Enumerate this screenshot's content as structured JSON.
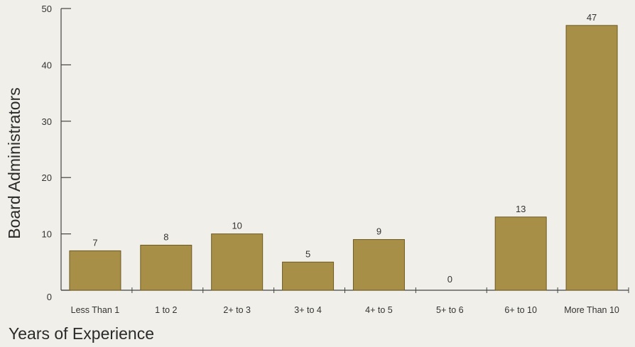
{
  "chart_data": {
    "type": "bar",
    "categories": [
      "Less Than 1",
      "1 to 2",
      "2+ to 3",
      "3+ to 4",
      "4+ to 5",
      "5+ to 6",
      "6+ to 10",
      "More Than 10"
    ],
    "values": [
      7,
      8,
      10,
      5,
      9,
      0,
      13,
      47
    ],
    "title": "",
    "xlabel": "Years of Experience",
    "ylabel": "Board Administrators",
    "ylim": [
      0,
      50
    ],
    "yticks": [
      0,
      10,
      20,
      30,
      40,
      50
    ],
    "grid": false,
    "legend": "none",
    "bar_color": "#a88f47",
    "bar_edge_color": "#6e5a22",
    "axis_color": "#444444",
    "background_color": "#f0efe9"
  }
}
